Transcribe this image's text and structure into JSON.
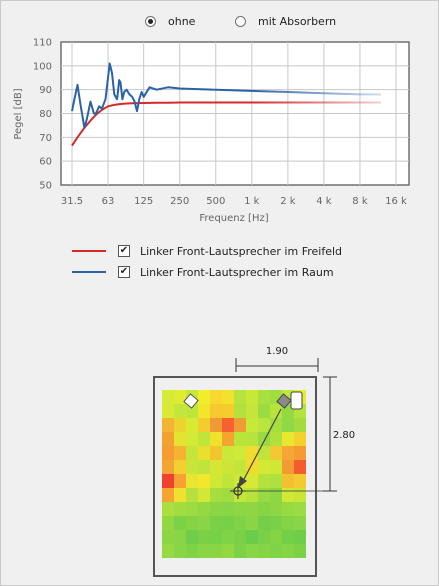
{
  "radio_group": {
    "options": [
      {
        "label": "ohne",
        "checked": true
      },
      {
        "label": "mit Absorbern",
        "checked": false
      }
    ]
  },
  "chart_data": {
    "type": "line",
    "xlabel": "Frequenz [Hz]",
    "ylabel": "Pegel [dB]",
    "x_scale": "log",
    "x_ticks": [
      31.5,
      63,
      125,
      250,
      500,
      1000,
      2000,
      4000,
      8000,
      16000
    ],
    "x_tick_labels": [
      "31.5",
      "63",
      "125",
      "250",
      "500",
      "1 k",
      "2 k",
      "4 k",
      "8 k",
      "16 k"
    ],
    "y_ticks": [
      50,
      60,
      70,
      80,
      90,
      100,
      110
    ],
    "ylim": [
      50,
      110
    ],
    "grid": true,
    "series": [
      {
        "name": "Linker Front-Lautsprecher im Freifeld",
        "color": "#d42a2a",
        "x": [
          31.5,
          35,
          40,
          45,
          50,
          56,
          63,
          71,
          80,
          90,
          100,
          125,
          160,
          200,
          250,
          500,
          1000,
          2000,
          4000,
          8000,
          12000
        ],
        "y": [
          66.5,
          70,
          74,
          77,
          79.5,
          81.5,
          83,
          83.6,
          84,
          84.2,
          84.3,
          84.4,
          84.5,
          84.5,
          84.6,
          84.6,
          84.6,
          84.6,
          84.6,
          84.6,
          84.6
        ]
      },
      {
        "name": "Linker Front-Lautsprecher im Raum",
        "color": "#2a62a8",
        "x": [
          31.5,
          33,
          35,
          37,
          40,
          42,
          45,
          48,
          50,
          53,
          56,
          60,
          63,
          65,
          68,
          71,
          75,
          78,
          80,
          83,
          86,
          90,
          95,
          100,
          105,
          110,
          115,
          120,
          125,
          140,
          160,
          200,
          250,
          500,
          1000,
          2000,
          4000,
          8000,
          12000
        ],
        "y": [
          81,
          86,
          92,
          84,
          74,
          78,
          85,
          80,
          80,
          83,
          82,
          86,
          95,
          101,
          97,
          88,
          86,
          94,
          93,
          86,
          89,
          90,
          88,
          87,
          85,
          81,
          86,
          89,
          87,
          91,
          90,
          91,
          90.5,
          90,
          89.5,
          89,
          88.5,
          88,
          88
        ]
      }
    ]
  },
  "legend": {
    "items": [
      {
        "label": "Linker Front-Lautsprecher im Freifeld",
        "color": "#d42a2a",
        "checked": "✔"
      },
      {
        "label": "Linker Front-Lautsprecher im Raum",
        "color": "#2a62a8",
        "checked": "✔"
      }
    ]
  },
  "room": {
    "width_label": "1.90",
    "depth_label": "2.80",
    "heatmap_rows": [
      [
        "#d7ea3a",
        "#e0ec30",
        "#c6e639",
        "#f0ee2a",
        "#f6d82e",
        "#f2e22e",
        "#b8e23c",
        "#c8e838",
        "#a8e040",
        "#a0de40",
        "#bfe63a",
        "#e6ec30"
      ],
      [
        "#d8ea34",
        "#c4e63a",
        "#bde63b",
        "#f2e52c",
        "#f7c82f",
        "#f5cc2c",
        "#b2e13e",
        "#c6e53a",
        "#9bdc42",
        "#b8e33a",
        "#94d942",
        "#b4e23e"
      ],
      [
        "#f3b432",
        "#ecd330",
        "#d7ea34",
        "#f4cc30",
        "#f09a34",
        "#f6612f",
        "#ee9c34",
        "#c8e83a",
        "#b9e63c",
        "#a5de40",
        "#90d844",
        "#a4dc40"
      ],
      [
        "#f3a232",
        "#e6e230",
        "#d4ea34",
        "#bfe43a",
        "#f0e22c",
        "#f3a530",
        "#b9e43a",
        "#b8e23c",
        "#9ad942",
        "#aee03e",
        "#e9e82f",
        "#f3d22f"
      ],
      [
        "#f49d33",
        "#f6b331",
        "#c6e53b",
        "#e9e02e",
        "#f2c52f",
        "#c9e838",
        "#cfea37",
        "#f0dc2e",
        "#c1e43b",
        "#f2c930",
        "#f6a634",
        "#f49b33"
      ],
      [
        "#f4a433",
        "#f5ce2f",
        "#c7e53b",
        "#c0e43b",
        "#d7e634",
        "#cde538",
        "#c3e43a",
        "#f4d92e",
        "#d4e836",
        "#d0e736",
        "#f39b33",
        "#f45b2f"
      ],
      [
        "#f0412e",
        "#f5a134",
        "#e8e631",
        "#f2e72d",
        "#cfe836",
        "#c0e43a",
        "#cfe736",
        "#d7e935",
        "#b4e23d",
        "#aee03e",
        "#f3c030",
        "#f4ca31"
      ],
      [
        "#f3a433",
        "#eee22f",
        "#b6e13d",
        "#d2e736",
        "#a6de3f",
        "#a0dc40",
        "#c4e63a",
        "#b5e23c",
        "#98da42",
        "#8ed744",
        "#d1e837",
        "#c8e538"
      ],
      [
        "#aadf3f",
        "#a2dc40",
        "#9cdb41",
        "#94d842",
        "#8cd644",
        "#88d545",
        "#8dd744",
        "#90d644",
        "#88d445",
        "#8ed644",
        "#98da42",
        "#9cdb41"
      ],
      [
        "#92d843",
        "#7cd247",
        "#86d446",
        "#8ad545",
        "#7ad147",
        "#76d048",
        "#80d346",
        "#8ad545",
        "#74cf48",
        "#7ad147",
        "#84d446",
        "#8ad545"
      ],
      [
        "#8cd644",
        "#88d545",
        "#6ecd49",
        "#7ad147",
        "#76d048",
        "#80d346",
        "#78d047",
        "#6acc4a",
        "#7ad147",
        "#84d446",
        "#74cf48",
        "#6ecd49"
      ],
      [
        "#96d942",
        "#8ad545",
        "#7ed346",
        "#88d545",
        "#8ad545",
        "#92d843",
        "#7cd247",
        "#88d545",
        "#84d446",
        "#80d346",
        "#84d446",
        "#7cd247"
      ]
    ]
  }
}
